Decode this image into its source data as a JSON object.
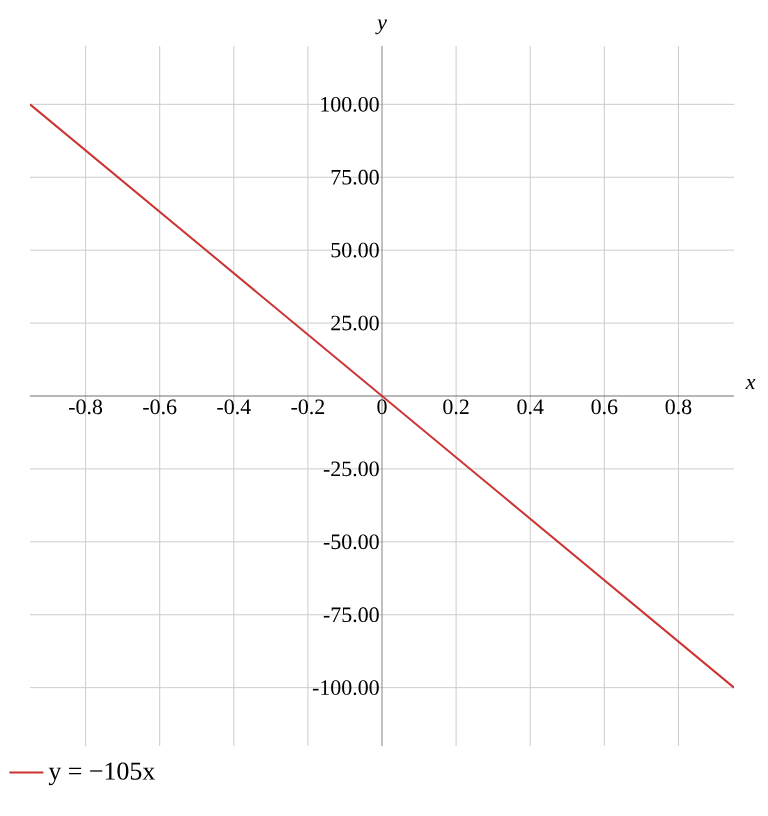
{
  "chart_data": {
    "type": "line",
    "xlabel": "x",
    "ylabel": "y",
    "series": [
      {
        "name": "y = −105x",
        "color": "#cc3333",
        "x": [
          -0.95,
          0.95
        ],
        "values": [
          100,
          -100
        ]
      }
    ],
    "xlim": [
      -0.95,
      0.95
    ],
    "ylim": [
      -120,
      120
    ],
    "xticks": [
      {
        "value": -0.8,
        "label": "-0.8"
      },
      {
        "value": -0.6,
        "label": "-0.6"
      },
      {
        "value": -0.4,
        "label": "-0.4"
      },
      {
        "value": -0.2,
        "label": "-0.2"
      },
      0,
      {
        "value": 0.2,
        "label": "0.2"
      },
      {
        "value": 0.4,
        "label": "0.4"
      },
      {
        "value": 0.6,
        "label": "0.6"
      },
      {
        "value": 0.8,
        "label": "0.8"
      }
    ],
    "yticks": [
      {
        "value": -100,
        "label": "-100.00"
      },
      {
        "value": -75,
        "label": "-75.00"
      },
      {
        "value": -50,
        "label": "-50.00"
      },
      {
        "value": -25,
        "label": "-25.00"
      },
      {
        "value": 25,
        "label": "25.00"
      },
      {
        "value": 50,
        "label": "50.00"
      },
      {
        "value": 75,
        "label": "75.00"
      },
      {
        "value": 100,
        "label": "100.00"
      }
    ],
    "grid": true,
    "legend": "bottom left"
  }
}
